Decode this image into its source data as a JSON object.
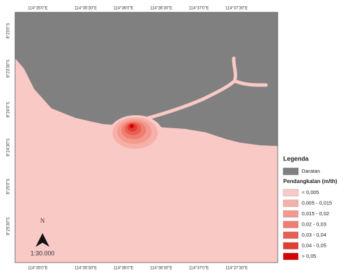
{
  "map": {
    "top_labels": [
      "114°35'0\"E",
      "114°35'30\"E",
      "114°36'0\"E",
      "114°36'30\"E",
      "114°37'0\"E",
      "114°37'30\"E"
    ],
    "bottom_labels": [
      "114°35'0\"E",
      "114°35'30\"E",
      "114°36'0\"E",
      "114°36'30\"E",
      "114°37'0\"E",
      "114°37'30\"E"
    ],
    "left_labels": [
      "8°23'0\"S",
      "8°23'30\"S",
      "8°24'0\"S",
      "8°24'30\"S",
      "8°25'0\"S",
      "8°25'30\"S"
    ],
    "north": "N",
    "scale": "1:30.000",
    "land_color": "#808080",
    "sea_color": "#f9c9c6"
  },
  "legend": {
    "title": "Legenda",
    "land": "Daratan",
    "class_title": "Pendangkalan (m/th)",
    "classes": [
      {
        "label": "< 0,005",
        "color": "#f9c9c6"
      },
      {
        "label": "0,005 - 0,015",
        "color": "#f6b0a8"
      },
      {
        "label": "0,015 - 0,02",
        "color": "#f39a8e"
      },
      {
        "label": "0,02 - 0,03",
        "color": "#ef7e70"
      },
      {
        "label": "0,03 - 0,04",
        "color": "#e95f52"
      },
      {
        "label": "0,04 - 0,05",
        "color": "#e33c30"
      },
      {
        "label": "> 0,05",
        "color": "#d40000"
      }
    ]
  }
}
